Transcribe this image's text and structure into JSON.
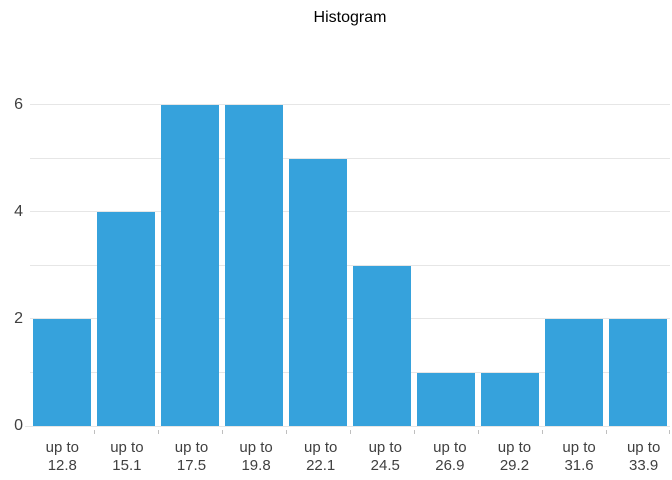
{
  "chart_data": {
    "type": "bar",
    "title": "Histogram",
    "categories": [
      {
        "line1": "up to",
        "line2": "12.8"
      },
      {
        "line1": "up to",
        "line2": "15.1"
      },
      {
        "line1": "up to",
        "line2": "17.5"
      },
      {
        "line1": "up to",
        "line2": "19.8"
      },
      {
        "line1": "up to",
        "line2": "22.1"
      },
      {
        "line1": "up to",
        "line2": "24.5"
      },
      {
        "line1": "up to",
        "line2": "26.9"
      },
      {
        "line1": "up to",
        "line2": "29.2"
      },
      {
        "line1": "up to",
        "line2": "31.6"
      },
      {
        "line1": "up to",
        "line2": "33.9"
      }
    ],
    "values": [
      2,
      4,
      6,
      6,
      5,
      3,
      1,
      1,
      2,
      2
    ],
    "xlabel": "",
    "ylabel": "",
    "ylim": [
      0,
      6
    ],
    "ytick_labels": [
      0,
      2,
      4,
      6
    ],
    "gridline_values": [
      1,
      2,
      3,
      4,
      5,
      6
    ],
    "grid": true,
    "legend_position": "none"
  },
  "colors": {
    "bar": "#36a2dc",
    "gridline": "#e6e6e6",
    "baseline": "#e6e6e6",
    "axis_text": "#404040",
    "title_text": "#000000",
    "background": "#ffffff"
  }
}
